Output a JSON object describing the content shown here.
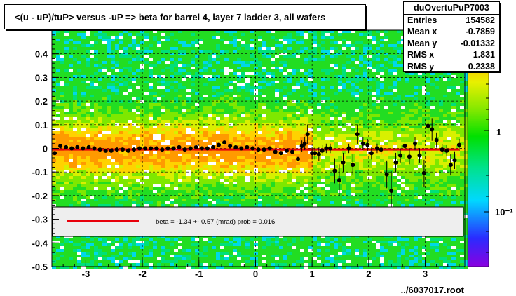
{
  "title": "<(u - uP)/tuP> versus  -uP => beta for barrel 4, layer 7 ladder 3, all wafers",
  "stats": {
    "name": "duOvertuPuP7003",
    "rows": [
      {
        "label": "Entries",
        "value": "154582"
      },
      {
        "label": "Mean x",
        "value": "-0.7859"
      },
      {
        "label": "Mean y",
        "value": "-0.01332"
      },
      {
        "label": "RMS x",
        "value": "1.831"
      },
      {
        "label": "RMS y",
        "value": "0.2338"
      }
    ]
  },
  "fit_legend": "beta =   -1.34 +-  0.57 (mrad) prob = 0.016",
  "footer": "../6037017.root",
  "colors": {
    "fit_line": "#e8000b",
    "frame": "#000000",
    "legend_bg": "#eeeeee"
  },
  "chart_data": {
    "type": "scatter",
    "xlim": [
      -3.6,
      3.7
    ],
    "ylim": [
      -0.5,
      0.5
    ],
    "xticks": [
      "-3",
      "-2",
      "-1",
      "0",
      "1",
      "2",
      "3"
    ],
    "yticks": [
      "-0.5",
      "-0.4",
      "-0.3",
      "-0.2",
      "-0.1",
      "0",
      "0.1",
      "0.2",
      "0.3",
      "0.4"
    ],
    "z_ticks": [
      "1",
      "10⁻¹"
    ],
    "log_z": true,
    "grid": true,
    "fit_line": [
      [
        -3.6,
        -0.0048
      ],
      [
        3.6,
        -0.0048
      ]
    ],
    "profile_points": [
      [
        -3.55,
        -0.02
      ],
      [
        -3.45,
        0.01
      ],
      [
        -3.35,
        0.005
      ],
      [
        -3.25,
        0.0
      ],
      [
        -3.15,
        0.005
      ],
      [
        -3.05,
        0.0
      ],
      [
        -2.95,
        0.005
      ],
      [
        -2.85,
        0.0
      ],
      [
        -2.75,
        -0.005
      ],
      [
        -2.65,
        -0.01
      ],
      [
        -2.55,
        -0.01
      ],
      [
        -2.45,
        -0.005
      ],
      [
        -2.35,
        -0.005
      ],
      [
        -2.25,
        -0.01
      ],
      [
        -2.15,
        -0.005
      ],
      [
        -2.05,
        0.0
      ],
      [
        -1.95,
        0.0
      ],
      [
        -1.85,
        0.0
      ],
      [
        -1.75,
        0.0
      ],
      [
        -1.65,
        -0.005
      ],
      [
        -1.55,
        0.0
      ],
      [
        -1.45,
        0.0
      ],
      [
        -1.35,
        0.005
      ],
      [
        -1.25,
        -0.005
      ],
      [
        -1.15,
        0.0
      ],
      [
        -1.05,
        0.005
      ],
      [
        -0.95,
        0.0
      ],
      [
        -0.85,
        0.0
      ],
      [
        -0.75,
        0.005
      ],
      [
        -0.65,
        0.015
      ],
      [
        -0.55,
        0.025
      ],
      [
        -0.45,
        0.01
      ],
      [
        -0.35,
        0.005
      ],
      [
        -0.25,
        0.0
      ],
      [
        -0.15,
        0.005
      ],
      [
        -0.05,
        0.0
      ],
      [
        0.05,
        -0.005
      ],
      [
        0.15,
        -0.005
      ],
      [
        0.25,
        0.0
      ],
      [
        0.35,
        -0.015
      ],
      [
        0.45,
        -0.02
      ],
      [
        0.55,
        -0.01
      ],
      [
        0.65,
        -0.015
      ],
      [
        0.75,
        -0.045
      ],
      [
        0.82,
        0.01
      ],
      [
        0.87,
        0.02
      ],
      [
        0.92,
        0.06
      ],
      [
        1.0,
        -0.02
      ],
      [
        1.05,
        -0.02
      ],
      [
        1.12,
        -0.025
      ],
      [
        1.18,
        -0.01
      ],
      [
        1.25,
        0.0
      ],
      [
        1.32,
        0.0
      ],
      [
        1.4,
        -0.095
      ],
      [
        1.48,
        -0.135
      ],
      [
        1.55,
        -0.06
      ],
      [
        1.65,
        0.0
      ],
      [
        1.72,
        -0.07
      ],
      [
        1.8,
        0.06
      ],
      [
        1.9,
        0.02
      ],
      [
        1.98,
        0.015
      ],
      [
        2.05,
        -0.02
      ],
      [
        2.15,
        0.0
      ],
      [
        2.22,
        -0.005
      ],
      [
        2.32,
        -0.11
      ],
      [
        2.4,
        -0.18
      ],
      [
        2.48,
        -0.06
      ],
      [
        2.56,
        -0.03
      ],
      [
        2.64,
        0.01
      ],
      [
        2.72,
        -0.035
      ],
      [
        2.82,
        0.02
      ],
      [
        2.9,
        -0.03
      ],
      [
        2.98,
        -0.105
      ],
      [
        3.05,
        0.095
      ],
      [
        3.12,
        0.08
      ],
      [
        3.2,
        0.035
      ],
      [
        3.3,
        -0.005
      ],
      [
        3.38,
        -0.01
      ],
      [
        3.45,
        -0.07
      ],
      [
        3.52,
        -0.05
      ],
      [
        3.6,
        0.015
      ]
    ]
  }
}
